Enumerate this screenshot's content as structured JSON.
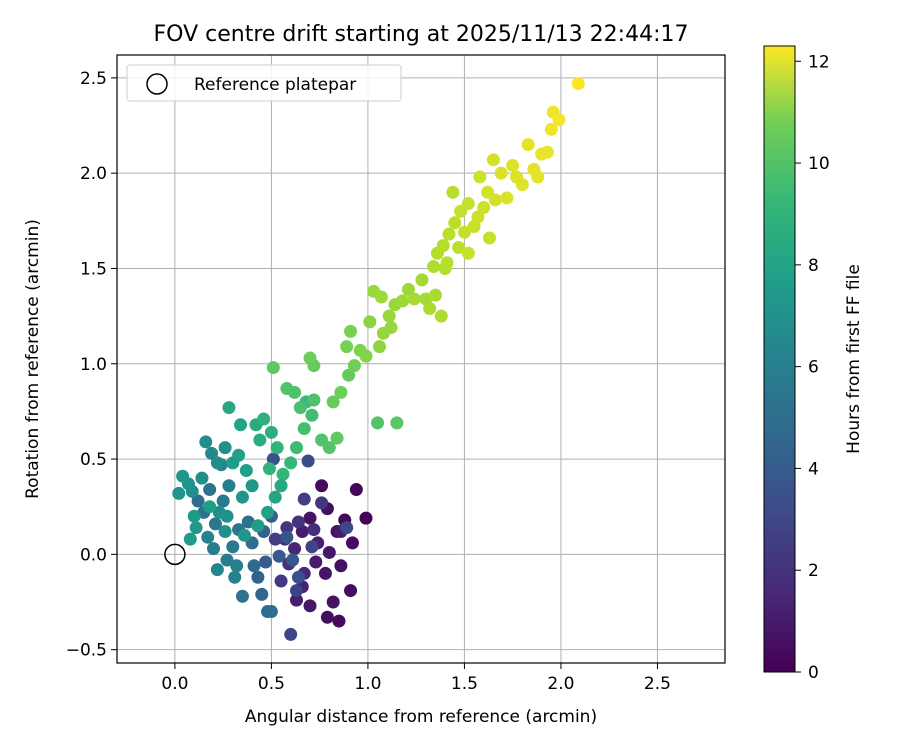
{
  "chart_data": {
    "type": "scatter",
    "title": "FOV centre drift starting at 2025/11/13 22:44:17",
    "xlabel": "Angular distance from reference (arcmin)",
    "ylabel": "Rotation from reference (arcmin)",
    "xlim": [
      -0.3,
      2.85
    ],
    "ylim": [
      -0.57,
      2.62
    ],
    "xticks": [
      0.0,
      0.5,
      1.0,
      1.5,
      2.0,
      2.5
    ],
    "yticks": [
      -0.5,
      0.0,
      0.5,
      1.0,
      1.5,
      2.0,
      2.5
    ],
    "xtick_labels": [
      "0.0",
      "0.5",
      "1.0",
      "1.5",
      "2.0",
      "2.5"
    ],
    "ytick_labels": [
      "−0.5",
      "0.0",
      "0.5",
      "1.0",
      "1.5",
      "2.0",
      "2.5"
    ],
    "grid": true,
    "legend": {
      "placement": "top-left",
      "entries": [
        "Reference platepar"
      ]
    },
    "reference_point": {
      "x": 0.0,
      "y": 0.0,
      "marker": "open-circle"
    },
    "colorbar": {
      "label": "Hours from first FF file",
      "colormap": "viridis",
      "range": [
        0,
        12.3
      ],
      "ticks": [
        0,
        2,
        4,
        6,
        8,
        10,
        12
      ],
      "tick_labels": [
        "0",
        "2",
        "4",
        "6",
        "8",
        "10",
        "12"
      ],
      "placement": "right"
    },
    "points": [
      [
        0.85,
        -0.35,
        0.3
      ],
      [
        0.79,
        -0.33,
        0.5
      ],
      [
        0.82,
        -0.25,
        0.6
      ],
      [
        0.91,
        -0.19,
        0.4
      ],
      [
        0.7,
        -0.27,
        0.8
      ],
      [
        0.63,
        -0.24,
        1.0
      ],
      [
        0.66,
        -0.17,
        1.2
      ],
      [
        0.78,
        -0.1,
        0.7
      ],
      [
        0.73,
        -0.04,
        0.9
      ],
      [
        0.86,
        -0.06,
        0.5
      ],
      [
        0.92,
        0.06,
        0.4
      ],
      [
        0.84,
        0.12,
        0.6
      ],
      [
        0.88,
        0.18,
        0.2
      ],
      [
        0.99,
        0.19,
        0.1
      ],
      [
        0.94,
        0.34,
        0.2
      ],
      [
        0.76,
        0.36,
        0.3
      ],
      [
        0.79,
        0.24,
        0.5
      ],
      [
        0.7,
        0.19,
        0.6
      ],
      [
        0.66,
        0.12,
        0.9
      ],
      [
        0.74,
        0.06,
        1.1
      ],
      [
        0.62,
        0.03,
        1.3
      ],
      [
        0.57,
        0.08,
        1.5
      ],
      [
        0.59,
        -0.05,
        1.7
      ],
      [
        0.67,
        -0.1,
        1.4
      ],
      [
        0.8,
        0.01,
        0.8
      ],
      [
        0.86,
        0.12,
        1.0
      ],
      [
        0.72,
        0.13,
        1.6
      ],
      [
        0.64,
        0.17,
        1.8
      ],
      [
        0.58,
        0.14,
        2.0
      ],
      [
        0.52,
        0.08,
        2.2
      ],
      [
        0.55,
        -0.14,
        2.1
      ],
      [
        0.6,
        -0.42,
        2.6
      ],
      [
        0.63,
        -0.19,
        2.4
      ],
      [
        0.76,
        0.27,
        1.9
      ],
      [
        0.67,
        0.29,
        2.3
      ],
      [
        0.71,
        0.04,
        2.5
      ],
      [
        0.89,
        0.14,
        2.7
      ],
      [
        0.69,
        0.49,
        2.8
      ],
      [
        0.51,
        0.5,
        3.1
      ],
      [
        0.58,
        0.09,
        3.2
      ],
      [
        0.61,
        -0.03,
        3.4
      ],
      [
        0.64,
        -0.12,
        3.0
      ],
      [
        0.54,
        -0.01,
        3.5
      ],
      [
        0.47,
        -0.04,
        3.6
      ],
      [
        0.43,
        -0.12,
        3.9
      ],
      [
        0.45,
        -0.21,
        4.0
      ],
      [
        0.48,
        -0.3,
        4.2
      ],
      [
        0.5,
        -0.3,
        4.4
      ],
      [
        0.35,
        -0.22,
        4.6
      ],
      [
        0.41,
        -0.06,
        4.1
      ],
      [
        0.4,
        0.06,
        4.3
      ],
      [
        0.46,
        0.12,
        3.8
      ],
      [
        0.5,
        0.2,
        3.7
      ],
      [
        0.38,
        0.17,
        4.5
      ],
      [
        0.33,
        0.13,
        4.8
      ],
      [
        0.3,
        0.04,
        5.0
      ],
      [
        0.32,
        -0.06,
        5.2
      ],
      [
        0.27,
        -0.03,
        5.1
      ],
      [
        0.31,
        -0.12,
        5.4
      ],
      [
        0.22,
        -0.08,
        5.6
      ],
      [
        0.2,
        0.03,
        5.3
      ],
      [
        0.17,
        0.09,
        5.5
      ],
      [
        0.21,
        0.16,
        4.9
      ],
      [
        0.15,
        0.22,
        4.7
      ],
      [
        0.12,
        0.28,
        4.4
      ],
      [
        0.18,
        0.34,
        4.6
      ],
      [
        0.25,
        0.28,
        5.0
      ],
      [
        0.28,
        0.36,
        5.2
      ],
      [
        0.24,
        0.47,
        5.6
      ],
      [
        0.19,
        0.53,
        5.8
      ],
      [
        0.16,
        0.59,
        6.0
      ],
      [
        0.09,
        0.33,
        6.1
      ],
      [
        0.07,
        0.37,
        6.3
      ],
      [
        0.04,
        0.41,
        6.5
      ],
      [
        0.02,
        0.32,
        6.4
      ],
      [
        0.11,
        0.14,
        6.6
      ],
      [
        0.08,
        0.08,
        6.8
      ],
      [
        0.1,
        0.2,
        6.7
      ],
      [
        0.23,
        0.22,
        6.0
      ],
      [
        0.26,
        0.12,
        6.2
      ],
      [
        0.35,
        0.3,
        6.4
      ],
      [
        0.4,
        0.36,
        6.6
      ],
      [
        0.37,
        0.44,
        6.9
      ],
      [
        0.33,
        0.52,
        7.0
      ],
      [
        0.3,
        0.48,
        6.8
      ],
      [
        0.28,
        0.77,
        7.3
      ],
      [
        0.34,
        0.68,
        7.1
      ],
      [
        0.42,
        0.68,
        7.5
      ],
      [
        0.44,
        0.6,
        7.6
      ],
      [
        0.46,
        0.71,
        7.8
      ],
      [
        0.5,
        0.64,
        7.7
      ],
      [
        0.53,
        0.56,
        8.0
      ],
      [
        0.49,
        0.45,
        7.9
      ],
      [
        0.56,
        0.42,
        8.1
      ],
      [
        0.6,
        0.48,
        8.2
      ],
      [
        0.63,
        0.56,
        8.4
      ],
      [
        0.67,
        0.66,
        8.6
      ],
      [
        0.71,
        0.73,
        8.5
      ],
      [
        0.68,
        0.8,
        8.3
      ],
      [
        0.65,
        0.77,
        8.7
      ],
      [
        0.72,
        0.81,
        8.8
      ],
      [
        0.76,
        0.6,
        8.9
      ],
      [
        0.8,
        0.56,
        9.0
      ],
      [
        0.84,
        0.61,
        9.2
      ],
      [
        0.82,
        0.8,
        9.4
      ],
      [
        0.86,
        0.85,
        9.5
      ],
      [
        0.9,
        0.94,
        9.3
      ],
      [
        0.93,
        0.99,
        9.6
      ],
      [
        0.89,
        1.09,
        9.7
      ],
      [
        0.91,
        1.17,
        9.8
      ],
      [
        0.96,
        1.07,
        9.9
      ],
      [
        0.99,
        1.04,
        10.0
      ],
      [
        1.01,
        1.22,
        10.1
      ],
      [
        1.06,
        1.09,
        10.2
      ],
      [
        1.08,
        1.16,
        10.3
      ],
      [
        1.12,
        1.19,
        10.3
      ],
      [
        1.11,
        1.25,
        10.4
      ],
      [
        1.14,
        1.31,
        10.4
      ],
      [
        1.18,
        1.33,
        10.5
      ],
      [
        1.21,
        1.39,
        10.5
      ],
      [
        1.24,
        1.34,
        10.6
      ],
      [
        1.3,
        1.34,
        10.6
      ],
      [
        1.32,
        1.29,
        10.7
      ],
      [
        1.35,
        1.36,
        10.7
      ],
      [
        1.38,
        1.25,
        10.8
      ],
      [
        1.34,
        1.51,
        10.8
      ],
      [
        1.36,
        1.58,
        10.9
      ],
      [
        1.39,
        1.62,
        10.9
      ],
      [
        1.41,
        1.53,
        11.0
      ],
      [
        1.42,
        1.68,
        11.0
      ],
      [
        1.45,
        1.74,
        11.1
      ],
      [
        1.47,
        1.61,
        11.1
      ],
      [
        1.5,
        1.69,
        11.2
      ],
      [
        1.48,
        1.8,
        11.2
      ],
      [
        1.52,
        1.58,
        11.3
      ],
      [
        1.55,
        1.72,
        11.3
      ],
      [
        1.57,
        1.77,
        11.4
      ],
      [
        1.6,
        1.82,
        11.4
      ],
      [
        1.62,
        1.9,
        11.5
      ],
      [
        1.66,
        1.86,
        11.5
      ],
      [
        1.63,
        1.66,
        11.3
      ],
      [
        1.69,
        2.0,
        11.6
      ],
      [
        1.72,
        1.87,
        11.6
      ],
      [
        1.75,
        2.04,
        11.7
      ],
      [
        1.8,
        1.94,
        11.7
      ],
      [
        1.83,
        2.15,
        11.8
      ],
      [
        1.88,
        1.98,
        11.8
      ],
      [
        1.9,
        2.1,
        11.9
      ],
      [
        1.93,
        2.11,
        11.9
      ],
      [
        1.95,
        2.23,
        12.0
      ],
      [
        1.96,
        2.32,
        12.0
      ],
      [
        1.99,
        2.28,
        12.1
      ],
      [
        2.09,
        2.47,
        12.2
      ],
      [
        1.15,
        0.69,
        9.1
      ],
      [
        1.05,
        0.69,
        9.0
      ],
      [
        0.72,
        0.99,
        9.4
      ],
      [
        0.7,
        1.03,
        9.5
      ],
      [
        0.51,
        0.98,
        9.2
      ],
      [
        0.58,
        0.87,
        8.9
      ],
      [
        0.62,
        0.85,
        8.8
      ],
      [
        0.55,
        0.36,
        7.4
      ],
      [
        0.52,
        0.3,
        7.2
      ],
      [
        0.48,
        0.22,
        7.0
      ],
      [
        0.43,
        0.15,
        6.8
      ],
      [
        0.36,
        0.1,
        6.5
      ],
      [
        0.27,
        0.2,
        6.3
      ],
      [
        0.14,
        0.4,
        6.1
      ],
      [
        0.22,
        0.48,
        5.9
      ],
      [
        0.26,
        0.56,
        6.2
      ],
      [
        0.18,
        0.25,
        6.9
      ],
      [
        1.03,
        1.38,
        10.4
      ],
      [
        1.07,
        1.35,
        10.5
      ],
      [
        1.28,
        1.44,
        10.6
      ],
      [
        1.44,
        1.9,
        11.0
      ],
      [
        1.58,
        1.98,
        11.4
      ],
      [
        1.65,
        2.07,
        11.5
      ],
      [
        1.77,
        1.98,
        11.7
      ],
      [
        1.86,
        2.02,
        11.8
      ],
      [
        1.52,
        1.84,
        11.2
      ],
      [
        1.4,
        1.5,
        10.9
      ]
    ]
  }
}
